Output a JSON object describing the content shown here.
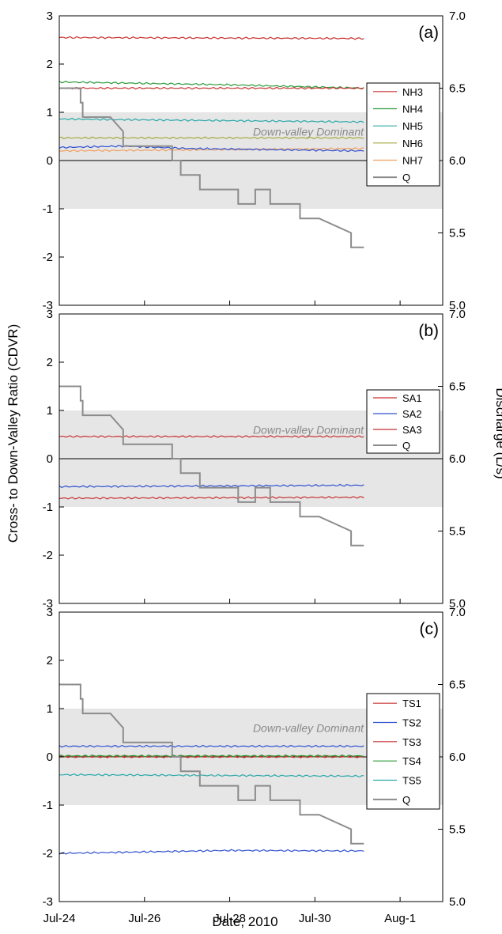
{
  "figure": {
    "ylabel_left": "Cross- to Down-Valley Ratio (CDVR)",
    "ylabel_right": "Discharge (L/s)",
    "xlabel": "Date, 2010"
  },
  "chart_data": [
    {
      "type": "line",
      "panel_label": "(a)",
      "band": {
        "ymin": -1,
        "ymax": 1,
        "label": "Down-valley Dominant",
        "color": "#e6e6e6"
      },
      "x_ticks": [
        "Jul-24",
        "Jul-26",
        "Jul-28",
        "Jul-30",
        "Aug-1"
      ],
      "xlim_days": [
        0,
        9
      ],
      "ylim": [
        -3,
        3
      ],
      "yticks": [
        3,
        2,
        1,
        0,
        -1,
        -2,
        -3
      ],
      "y2lim": [
        5.0,
        7.0
      ],
      "y2ticks": [
        "7.0",
        "6.5",
        "6.0",
        "5.5",
        "5.0"
      ],
      "zero_line": true,
      "legend_position": "right",
      "series": [
        {
          "name": "NH3",
          "color": "#c83232",
          "x": [
            0,
            7.15
          ],
          "y": [
            2.55,
            2.53
          ]
        },
        {
          "name": "NH4",
          "color": "#2a9a3a",
          "x": [
            0,
            2,
            4,
            7.15
          ],
          "y": [
            1.63,
            1.6,
            1.57,
            1.5
          ]
        },
        {
          "name": "NH5",
          "color": "#2aa8a8",
          "x": [
            0,
            7.15
          ],
          "y": [
            0.86,
            0.8
          ]
        },
        {
          "name": "NH6",
          "color": "#a8a840",
          "x": [
            0,
            7.15
          ],
          "y": [
            0.47,
            0.47
          ]
        },
        {
          "name": "NH7",
          "color": "#f0a060",
          "x": [
            0,
            7.15
          ],
          "y": [
            0.2,
            0.25
          ]
        },
        {
          "name": "",
          "color": "#3050d0",
          "x": [
            0,
            1.5,
            3,
            7.15
          ],
          "y": [
            0.27,
            0.3,
            0.25,
            0.2
          ]
        },
        {
          "name": "",
          "color": "#c83232",
          "x": [
            0,
            7.15
          ],
          "y": [
            1.5,
            1.5
          ]
        }
      ],
      "discharge": {
        "name": "Q",
        "color": "#8c8c8c",
        "x": [
          0,
          0.5,
          0.5,
          0.55,
          0.55,
          1.2,
          1.5,
          1.5,
          2.65,
          2.65,
          2.85,
          2.85,
          3.3,
          3.3,
          4.2,
          4.2,
          4.6,
          4.6,
          4.95,
          4.95,
          5.65,
          5.65,
          6.1,
          6.85,
          6.85,
          7.15
        ],
        "y": [
          6.5,
          6.5,
          6.4,
          6.4,
          6.3,
          6.3,
          6.2,
          6.1,
          6.1,
          6.0,
          6.0,
          5.9,
          5.9,
          5.8,
          5.8,
          5.7,
          5.7,
          5.8,
          5.8,
          5.7,
          5.7,
          5.6,
          5.6,
          5.5,
          5.4,
          5.4
        ]
      }
    },
    {
      "type": "line",
      "panel_label": "(b)",
      "band": {
        "ymin": -1,
        "ymax": 1,
        "label": "Down-valley Dominant",
        "color": "#e6e6e6"
      },
      "x_ticks": [
        "Jul-24",
        "Jul-26",
        "Jul-28",
        "Jul-30",
        "Aug-1"
      ],
      "xlim_days": [
        0,
        9
      ],
      "ylim": [
        -3,
        3
      ],
      "yticks": [
        3,
        2,
        1,
        0,
        -1,
        -2,
        -3
      ],
      "y2lim": [
        5.0,
        7.0
      ],
      "y2ticks": [
        "7.0",
        "6.5",
        "6.0",
        "5.5",
        "5.0"
      ],
      "zero_line": true,
      "legend_position": "right",
      "series": [
        {
          "name": "SA1",
          "color": "#c83232",
          "x": [
            0,
            7.15
          ],
          "y": [
            0.46,
            0.46
          ]
        },
        {
          "name": "SA2",
          "color": "#3050d0",
          "x": [
            0,
            7.15
          ],
          "y": [
            -0.58,
            -0.55
          ]
        },
        {
          "name": "SA3",
          "color": "#c83232",
          "x": [
            0,
            7.15
          ],
          "y": [
            -0.82,
            -0.8
          ]
        }
      ],
      "discharge": {
        "name": "Q",
        "color": "#8c8c8c",
        "x": [
          0,
          0.5,
          0.5,
          0.55,
          0.55,
          1.2,
          1.5,
          1.5,
          2.65,
          2.65,
          2.85,
          2.85,
          3.3,
          3.3,
          4.2,
          4.2,
          4.6,
          4.6,
          4.95,
          4.95,
          5.65,
          5.65,
          6.1,
          6.85,
          6.85,
          7.15
        ],
        "y": [
          6.5,
          6.5,
          6.4,
          6.4,
          6.3,
          6.3,
          6.2,
          6.1,
          6.1,
          6.0,
          6.0,
          5.9,
          5.9,
          5.8,
          5.8,
          5.7,
          5.7,
          5.8,
          5.8,
          5.7,
          5.7,
          5.6,
          5.6,
          5.5,
          5.4,
          5.4
        ]
      }
    },
    {
      "type": "line",
      "panel_label": "(c)",
      "band": {
        "ymin": -1,
        "ymax": 1,
        "label": "Down-valley Dominant",
        "color": "#e6e6e6"
      },
      "x_ticks": [
        "Jul-24",
        "Jul-26",
        "Jul-28",
        "Jul-30",
        "Aug-1"
      ],
      "xlim_days": [
        0,
        9
      ],
      "ylim": [
        -3,
        3
      ],
      "yticks": [
        3,
        2,
        1,
        0,
        -1,
        -2,
        -3
      ],
      "y2lim": [
        5.0,
        7.0
      ],
      "y2ticks": [
        "7.0",
        "6.5",
        "6.0",
        "5.5",
        "5.0"
      ],
      "zero_line": true,
      "legend_position": "right",
      "series": [
        {
          "name": "TS1",
          "color": "#c83232",
          "x": [
            0,
            7.15
          ],
          "y": [
            0.01,
            0.01
          ]
        },
        {
          "name": "TS2",
          "color": "#3050d0",
          "x": [
            0,
            7.15
          ],
          "y": [
            0.22,
            0.22
          ]
        },
        {
          "name": "TS3",
          "color": "#c83232",
          "x": [
            0,
            7.15
          ],
          "y": [
            0.0,
            0.0
          ]
        },
        {
          "name": "TS4",
          "color": "#2a9a3a",
          "x": [
            0,
            7.15
          ],
          "y": [
            0.02,
            0.02
          ]
        },
        {
          "name": "TS5",
          "color": "#2aa8a8",
          "x": [
            0,
            7.15
          ],
          "y": [
            -0.37,
            -0.4
          ]
        },
        {
          "name": "",
          "color": "#3050d0",
          "x": [
            0,
            2,
            4,
            7.15
          ],
          "y": [
            -2.0,
            -1.97,
            -1.94,
            -1.95
          ]
        }
      ],
      "discharge": {
        "name": "Q",
        "color": "#8c8c8c",
        "x": [
          0,
          0.5,
          0.5,
          0.55,
          0.55,
          1.2,
          1.5,
          1.5,
          2.65,
          2.65,
          2.85,
          2.85,
          3.3,
          3.3,
          4.2,
          4.2,
          4.6,
          4.6,
          4.95,
          4.95,
          5.65,
          5.65,
          6.1,
          6.85,
          6.85,
          7.15
        ],
        "y": [
          6.5,
          6.5,
          6.4,
          6.4,
          6.3,
          6.3,
          6.2,
          6.1,
          6.1,
          6.0,
          6.0,
          5.9,
          5.9,
          5.8,
          5.8,
          5.7,
          5.7,
          5.8,
          5.8,
          5.7,
          5.7,
          5.6,
          5.6,
          5.5,
          5.4,
          5.4
        ]
      }
    }
  ]
}
